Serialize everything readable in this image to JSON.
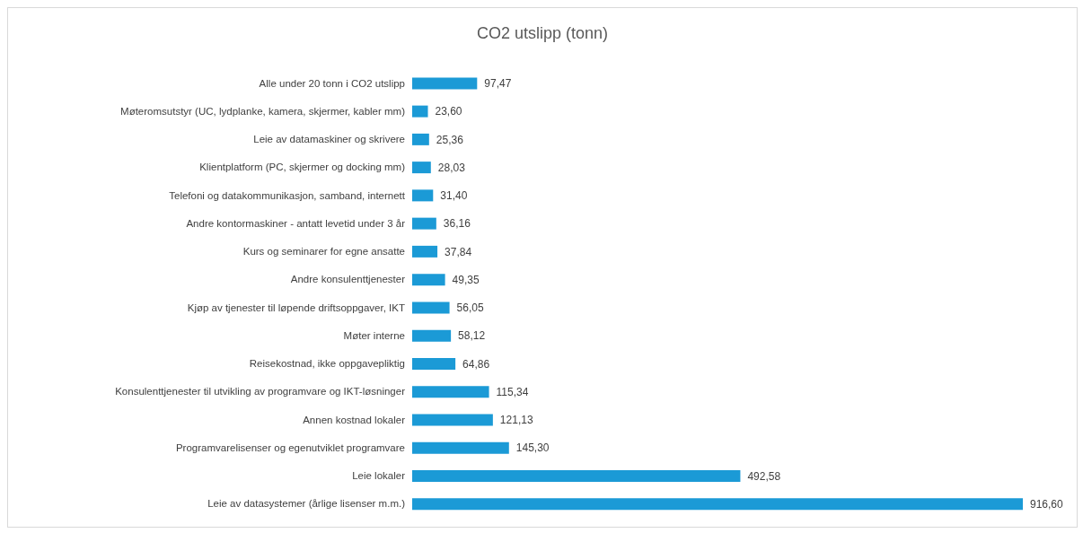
{
  "chart_data": {
    "type": "bar",
    "orientation": "horizontal",
    "title": "CO2 utslipp (tonn)",
    "categories": [
      "Alle under 20 tonn i CO2 utslipp",
      "Møteromsutstyr (UC, lydplanke, kamera, skjermer, kabler mm)",
      "Leie av datamaskiner og skrivere",
      "Klientplatform (PC, skjermer og docking mm)",
      "Telefoni og datakommunikasjon, samband, internett",
      "Andre kontormaskiner - antatt levetid under 3 år",
      "Kurs og seminarer for egne ansatte",
      "Andre konsulenttjenester",
      "Kjøp av tjenester til løpende driftsoppgaver, IKT",
      "Møter interne",
      "Reisekostnad, ikke oppgavepliktig",
      "Konsulenttjenester til utvikling av programvare og IKT-løsninger",
      "Annen kostnad lokaler",
      "Programvarelisenser og egenutviklet programvare",
      "Leie lokaler",
      "Leie av datasystemer (årlige lisenser m.m.)"
    ],
    "values": [
      97.47,
      23.6,
      25.36,
      28.03,
      31.4,
      36.16,
      37.84,
      49.35,
      56.05,
      58.12,
      64.86,
      115.34,
      121.13,
      145.3,
      492.58,
      916.6
    ],
    "value_labels": [
      "97,47",
      "23,60",
      "25,36",
      "28,03",
      "31,40",
      "36,16",
      "37,84",
      "49,35",
      "56,05",
      "58,12",
      "64,86",
      "115,34",
      "121,13",
      "145,30",
      "492,58",
      "916,60"
    ],
    "color": "#1b9ad6",
    "grid": false
  }
}
